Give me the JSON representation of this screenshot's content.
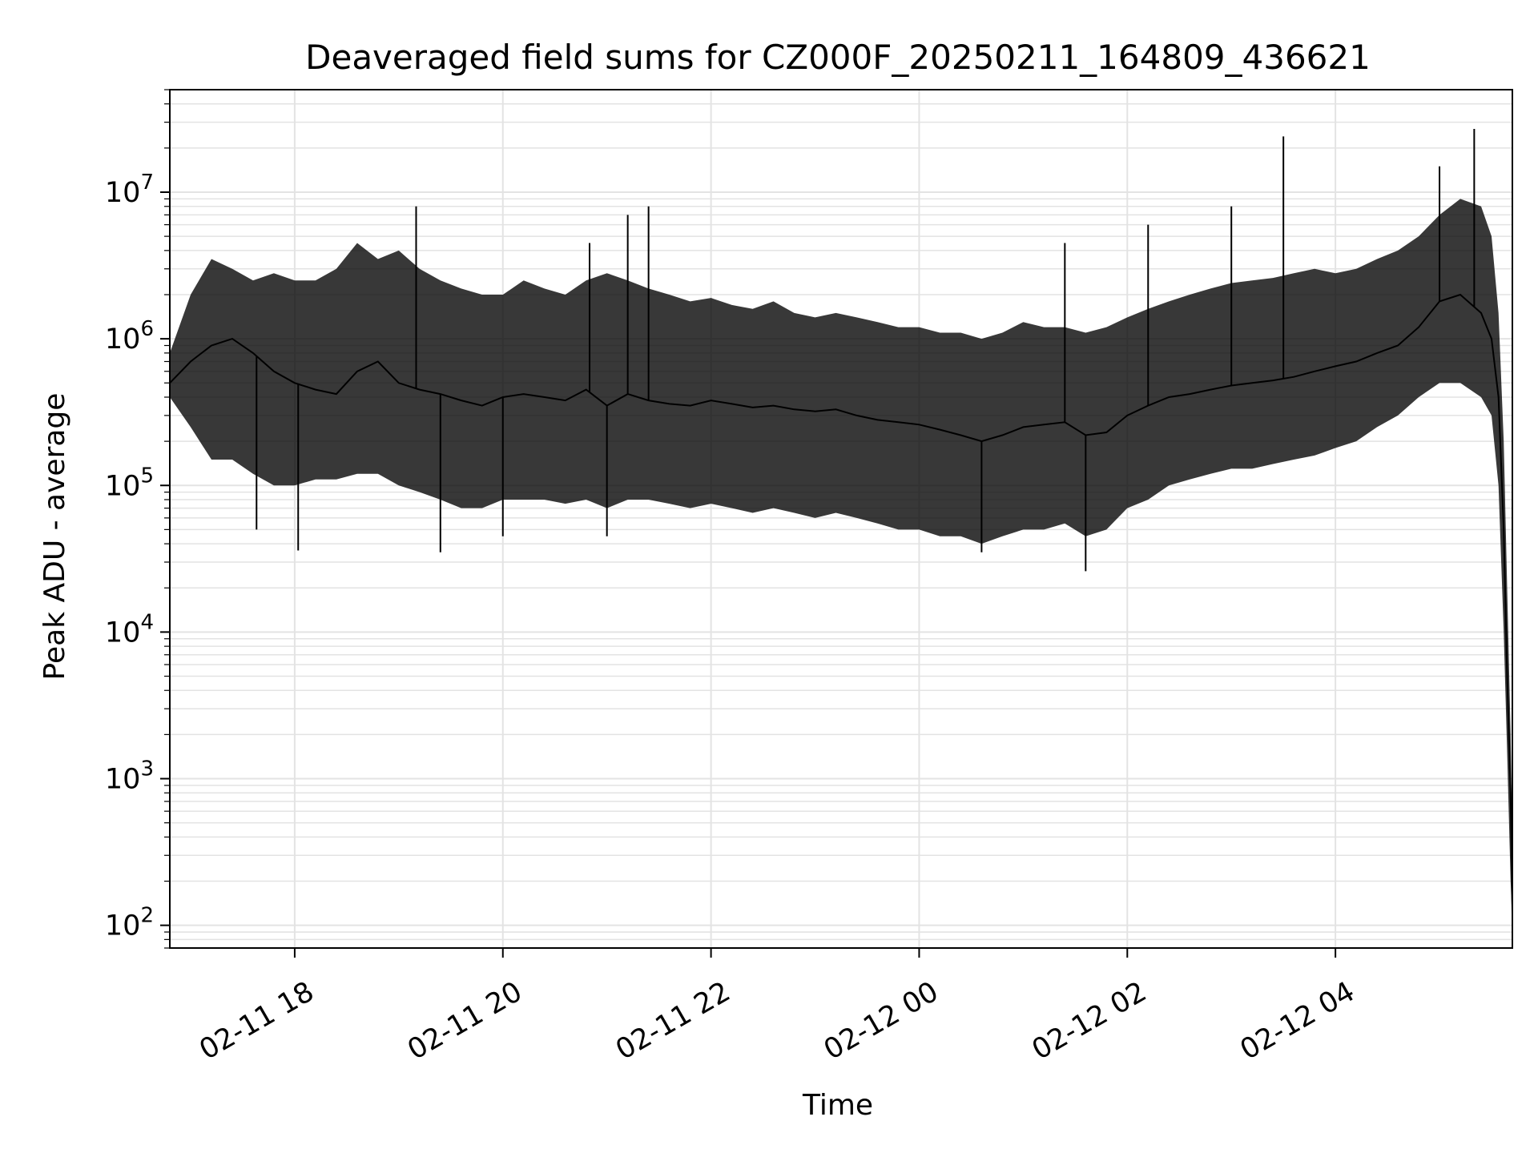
{
  "chart_data": {
    "type": "line",
    "title": "Deaveraged field sums for CZ000F_20250211_164809_436621",
    "xlabel": "Time",
    "ylabel": "Peak ADU - average",
    "yscale": "log",
    "ylim": [
      70,
      50000000
    ],
    "xlim": [
      "2025-02-11 16:48",
      "2025-02-12 05:42"
    ],
    "grid": true,
    "x_ticks": [
      {
        "value": "2025-02-11 18:00",
        "label": "02-11 18"
      },
      {
        "value": "2025-02-11 20:00",
        "label": "02-11 20"
      },
      {
        "value": "2025-02-11 22:00",
        "label": "02-11 22"
      },
      {
        "value": "2025-02-12 00:00",
        "label": "02-12 00"
      },
      {
        "value": "2025-02-12 02:00",
        "label": "02-12 02"
      },
      {
        "value": "2025-02-12 04:00",
        "label": "02-12 04"
      }
    ],
    "y_ticks": [
      {
        "value": 100,
        "base": "10",
        "exp": "2"
      },
      {
        "value": 1000,
        "base": "10",
        "exp": "3"
      },
      {
        "value": 10000,
        "base": "10",
        "exp": "4"
      },
      {
        "value": 100000,
        "base": "10",
        "exp": "5"
      },
      {
        "value": 1000000,
        "base": "10",
        "exp": "6"
      },
      {
        "value": 10000000,
        "base": "10",
        "exp": "7"
      }
    ],
    "series": [
      {
        "color": "#000000",
        "x": [
          "2025-02-11 16:48",
          "2025-02-11 17:00",
          "2025-02-11 17:12",
          "2025-02-11 17:24",
          "2025-02-11 17:36",
          "2025-02-11 17:48",
          "2025-02-11 18:00",
          "2025-02-11 18:12",
          "2025-02-11 18:24",
          "2025-02-11 18:36",
          "2025-02-11 18:48",
          "2025-02-11 19:00",
          "2025-02-11 19:12",
          "2025-02-11 19:24",
          "2025-02-11 19:36",
          "2025-02-11 19:48",
          "2025-02-11 20:00",
          "2025-02-11 20:12",
          "2025-02-11 20:24",
          "2025-02-11 20:36",
          "2025-02-11 20:48",
          "2025-02-11 21:00",
          "2025-02-11 21:12",
          "2025-02-11 21:24",
          "2025-02-11 21:36",
          "2025-02-11 21:48",
          "2025-02-11 22:00",
          "2025-02-11 22:12",
          "2025-02-11 22:24",
          "2025-02-11 22:36",
          "2025-02-11 22:48",
          "2025-02-11 23:00",
          "2025-02-11 23:12",
          "2025-02-11 23:24",
          "2025-02-11 23:36",
          "2025-02-11 23:48",
          "2025-02-12 00:00",
          "2025-02-12 00:12",
          "2025-02-12 00:24",
          "2025-02-12 00:36",
          "2025-02-12 00:48",
          "2025-02-12 01:00",
          "2025-02-12 01:12",
          "2025-02-12 01:24",
          "2025-02-12 01:36",
          "2025-02-12 01:48",
          "2025-02-12 02:00",
          "2025-02-12 02:12",
          "2025-02-12 02:24",
          "2025-02-12 02:36",
          "2025-02-12 02:48",
          "2025-02-12 03:00",
          "2025-02-12 03:12",
          "2025-02-12 03:24",
          "2025-02-12 03:36",
          "2025-02-12 03:48",
          "2025-02-12 04:00",
          "2025-02-12 04:12",
          "2025-02-12 04:24",
          "2025-02-12 04:36",
          "2025-02-12 04:48",
          "2025-02-12 05:00",
          "2025-02-12 05:12",
          "2025-02-12 05:24",
          "2025-02-12 05:30",
          "2025-02-12 05:34",
          "2025-02-12 05:37",
          "2025-02-12 05:39",
          "2025-02-12 05:41",
          "2025-02-12 05:42"
        ],
        "y": [
          500000,
          700000,
          900000,
          1000000,
          800000,
          600000,
          500000,
          450000,
          420000,
          600000,
          700000,
          500000,
          450000,
          420000,
          380000,
          350000,
          400000,
          420000,
          400000,
          380000,
          450000,
          350000,
          420000,
          380000,
          360000,
          350000,
          380000,
          360000,
          340000,
          350000,
          330000,
          320000,
          330000,
          300000,
          280000,
          270000,
          260000,
          240000,
          220000,
          200000,
          220000,
          250000,
          260000,
          270000,
          220000,
          230000,
          300000,
          350000,
          400000,
          420000,
          450000,
          480000,
          500000,
          520000,
          550000,
          600000,
          650000,
          700000,
          800000,
          900000,
          1200000,
          1800000,
          2000000,
          1500000,
          1000000,
          400000,
          50000,
          5000,
          800,
          120
        ]
      }
    ],
    "envelope": {
      "upper": [
        800000,
        2000000,
        3500000,
        3000000,
        2500000,
        2800000,
        2500000,
        2500000,
        3000000,
        4500000,
        3500000,
        4000000,
        3000000,
        2500000,
        2200000,
        2000000,
        2000000,
        2500000,
        2200000,
        2000000,
        2500000,
        2800000,
        2500000,
        2200000,
        2000000,
        1800000,
        1900000,
        1700000,
        1600000,
        1800000,
        1500000,
        1400000,
        1500000,
        1400000,
        1300000,
        1200000,
        1200000,
        1100000,
        1100000,
        1000000,
        1100000,
        1300000,
        1200000,
        1200000,
        1100000,
        1200000,
        1400000,
        1600000,
        1800000,
        2000000,
        2200000,
        2400000,
        2500000,
        2600000,
        2800000,
        3000000,
        2800000,
        3000000,
        3500000,
        4000000,
        5000000,
        7000000,
        9000000,
        8000000,
        5000000,
        1500000,
        200000,
        20000,
        2000,
        300
      ],
      "lower": [
        400000,
        250000,
        150000,
        150000,
        120000,
        100000,
        100000,
        110000,
        110000,
        120000,
        120000,
        100000,
        90000,
        80000,
        70000,
        70000,
        80000,
        80000,
        80000,
        75000,
        80000,
        70000,
        80000,
        80000,
        75000,
        70000,
        75000,
        70000,
        65000,
        70000,
        65000,
        60000,
        65000,
        60000,
        55000,
        50000,
        50000,
        45000,
        45000,
        40000,
        45000,
        50000,
        50000,
        55000,
        45000,
        50000,
        70000,
        80000,
        100000,
        110000,
        120000,
        130000,
        130000,
        140000,
        150000,
        160000,
        180000,
        200000,
        250000,
        300000,
        400000,
        500000,
        500000,
        400000,
        300000,
        100000,
        10000,
        1500,
        200,
        100
      ]
    },
    "spikes": [
      {
        "x": "2025-02-11 19:10",
        "y": 8000000
      },
      {
        "x": "2025-02-11 20:50",
        "y": 4500000
      },
      {
        "x": "2025-02-11 21:12",
        "y": 7000000
      },
      {
        "x": "2025-02-11 21:24",
        "y": 8000000
      },
      {
        "x": "2025-02-12 01:24",
        "y": 4500000
      },
      {
        "x": "2025-02-12 02:12",
        "y": 6000000
      },
      {
        "x": "2025-02-12 03:00",
        "y": 8000000
      },
      {
        "x": "2025-02-12 03:30",
        "y": 24000000
      },
      {
        "x": "2025-02-12 05:00",
        "y": 15000000
      },
      {
        "x": "2025-02-12 05:20",
        "y": 27000000
      },
      {
        "x": "2025-02-11 17:38",
        "y": 50000
      },
      {
        "x": "2025-02-11 18:02",
        "y": 36000
      },
      {
        "x": "2025-02-11 19:24",
        "y": 35000
      },
      {
        "x": "2025-02-11 20:00",
        "y": 45000
      },
      {
        "x": "2025-02-11 21:00",
        "y": 45000
      },
      {
        "x": "2025-02-12 00:36",
        "y": 35000
      },
      {
        "x": "2025-02-12 01:36",
        "y": 26000
      }
    ]
  }
}
